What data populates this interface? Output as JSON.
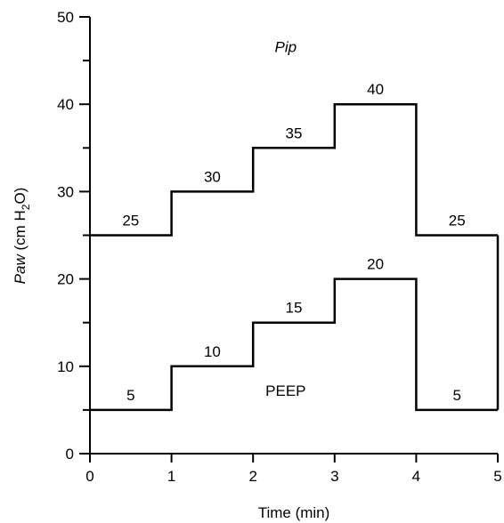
{
  "chart_data": {
    "type": "line",
    "step": true,
    "xlabel": "Time (min)",
    "ylabel_parts": {
      "italic": "Paw",
      "pre": " (cm H",
      "sub": "2",
      "post": "O)"
    },
    "xlim": [
      0,
      5
    ],
    "ylim": [
      0,
      50
    ],
    "x_ticks": [
      0,
      1,
      2,
      3,
      4,
      5
    ],
    "y_ticks": [
      0,
      10,
      20,
      30,
      40,
      50
    ],
    "grid": false,
    "series": [
      {
        "name": "Pip",
        "name_italic": true,
        "segments": [
          {
            "x0": 0,
            "x1": 1,
            "y": 25,
            "label": "25"
          },
          {
            "x0": 1,
            "x1": 2,
            "y": 30,
            "label": "30"
          },
          {
            "x0": 2,
            "x1": 3,
            "y": 35,
            "label": "35"
          },
          {
            "x0": 3,
            "x1": 4,
            "y": 40,
            "label": "40"
          },
          {
            "x0": 4,
            "x1": 5,
            "y": 25,
            "label": "25"
          }
        ]
      },
      {
        "name": "PEEP",
        "name_italic": false,
        "segments": [
          {
            "x0": 0,
            "x1": 1,
            "y": 5,
            "label": "5"
          },
          {
            "x0": 1,
            "x1": 2,
            "y": 10,
            "label": "10"
          },
          {
            "x0": 2,
            "x1": 3,
            "y": 15,
            "label": "15"
          },
          {
            "x0": 3,
            "x1": 4,
            "y": 20,
            "label": "20"
          },
          {
            "x0": 4,
            "x1": 5,
            "y": 5,
            "label": "5"
          }
        ]
      }
    ],
    "connector": {
      "x": 5,
      "y_from": 5,
      "y_to": 25
    }
  }
}
